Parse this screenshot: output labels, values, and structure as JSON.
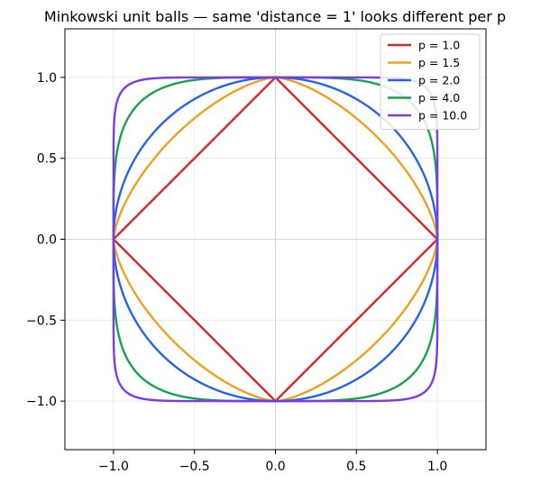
{
  "chart_data": {
    "type": "line",
    "title": "Minkowski unit balls — same 'distance = 1' looks different per p",
    "xlabel": "",
    "ylabel": "",
    "xlim": [
      -1.3,
      1.3
    ],
    "ylim": [
      -1.3,
      1.3
    ],
    "xticks": [
      -1.0,
      -0.5,
      0.0,
      0.5,
      1.0
    ],
    "yticks": [
      -1.0,
      -0.5,
      0.0,
      0.5,
      1.0
    ],
    "xtick_labels": [
      "−1.0",
      "−0.5",
      "0.0",
      "0.5",
      "1.0"
    ],
    "ytick_labels": [
      "−1.0",
      "−0.5",
      "0.0",
      "0.5",
      "1.0"
    ],
    "grid": true,
    "legend_position": "top-right",
    "series": [
      {
        "name": "p = 1.0",
        "p": 1.0,
        "color": "#d62728"
      },
      {
        "name": "p = 1.5",
        "p": 1.5,
        "color": "#f0a01f"
      },
      {
        "name": "p = 2.0",
        "p": 2.0,
        "color": "#2563eb"
      },
      {
        "name": "p = 4.0",
        "p": 4.0,
        "color": "#16a34a"
      },
      {
        "name": "p = 10.0",
        "p": 10.0,
        "color": "#7c3aed"
      }
    ]
  }
}
